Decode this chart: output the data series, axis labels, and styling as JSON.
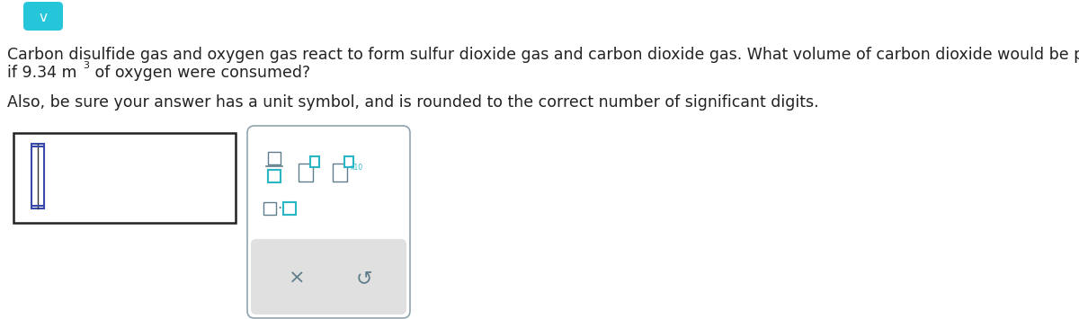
{
  "bg_color": "#ffffff",
  "text_line1": "Carbon disulfide gas and oxygen gas react to form sulfur dioxide gas and carbon dioxide gas. What volume of carbon dioxide would be produced by this reaction",
  "text_line2a": "if 9.34 m",
  "text_line2b": "3",
  "text_line2c": " of oxygen were consumed?",
  "text_line3": "Also, be sure your answer has a unit symbol, and is rounded to the correct number of significant digits.",
  "teal_color": "#29b6c5",
  "teal_dark": "#00838f",
  "gray_border": "#90a4ae",
  "dark_gray_text": "#607d8b",
  "light_gray_bg": "#e0e0e0",
  "blue_cursor": "#3949ab",
  "font_size_main": 12.5,
  "chevron_bg": "#26c6da",
  "input_box_color": "#222222",
  "toolbar_border_color": "#90a4ae"
}
